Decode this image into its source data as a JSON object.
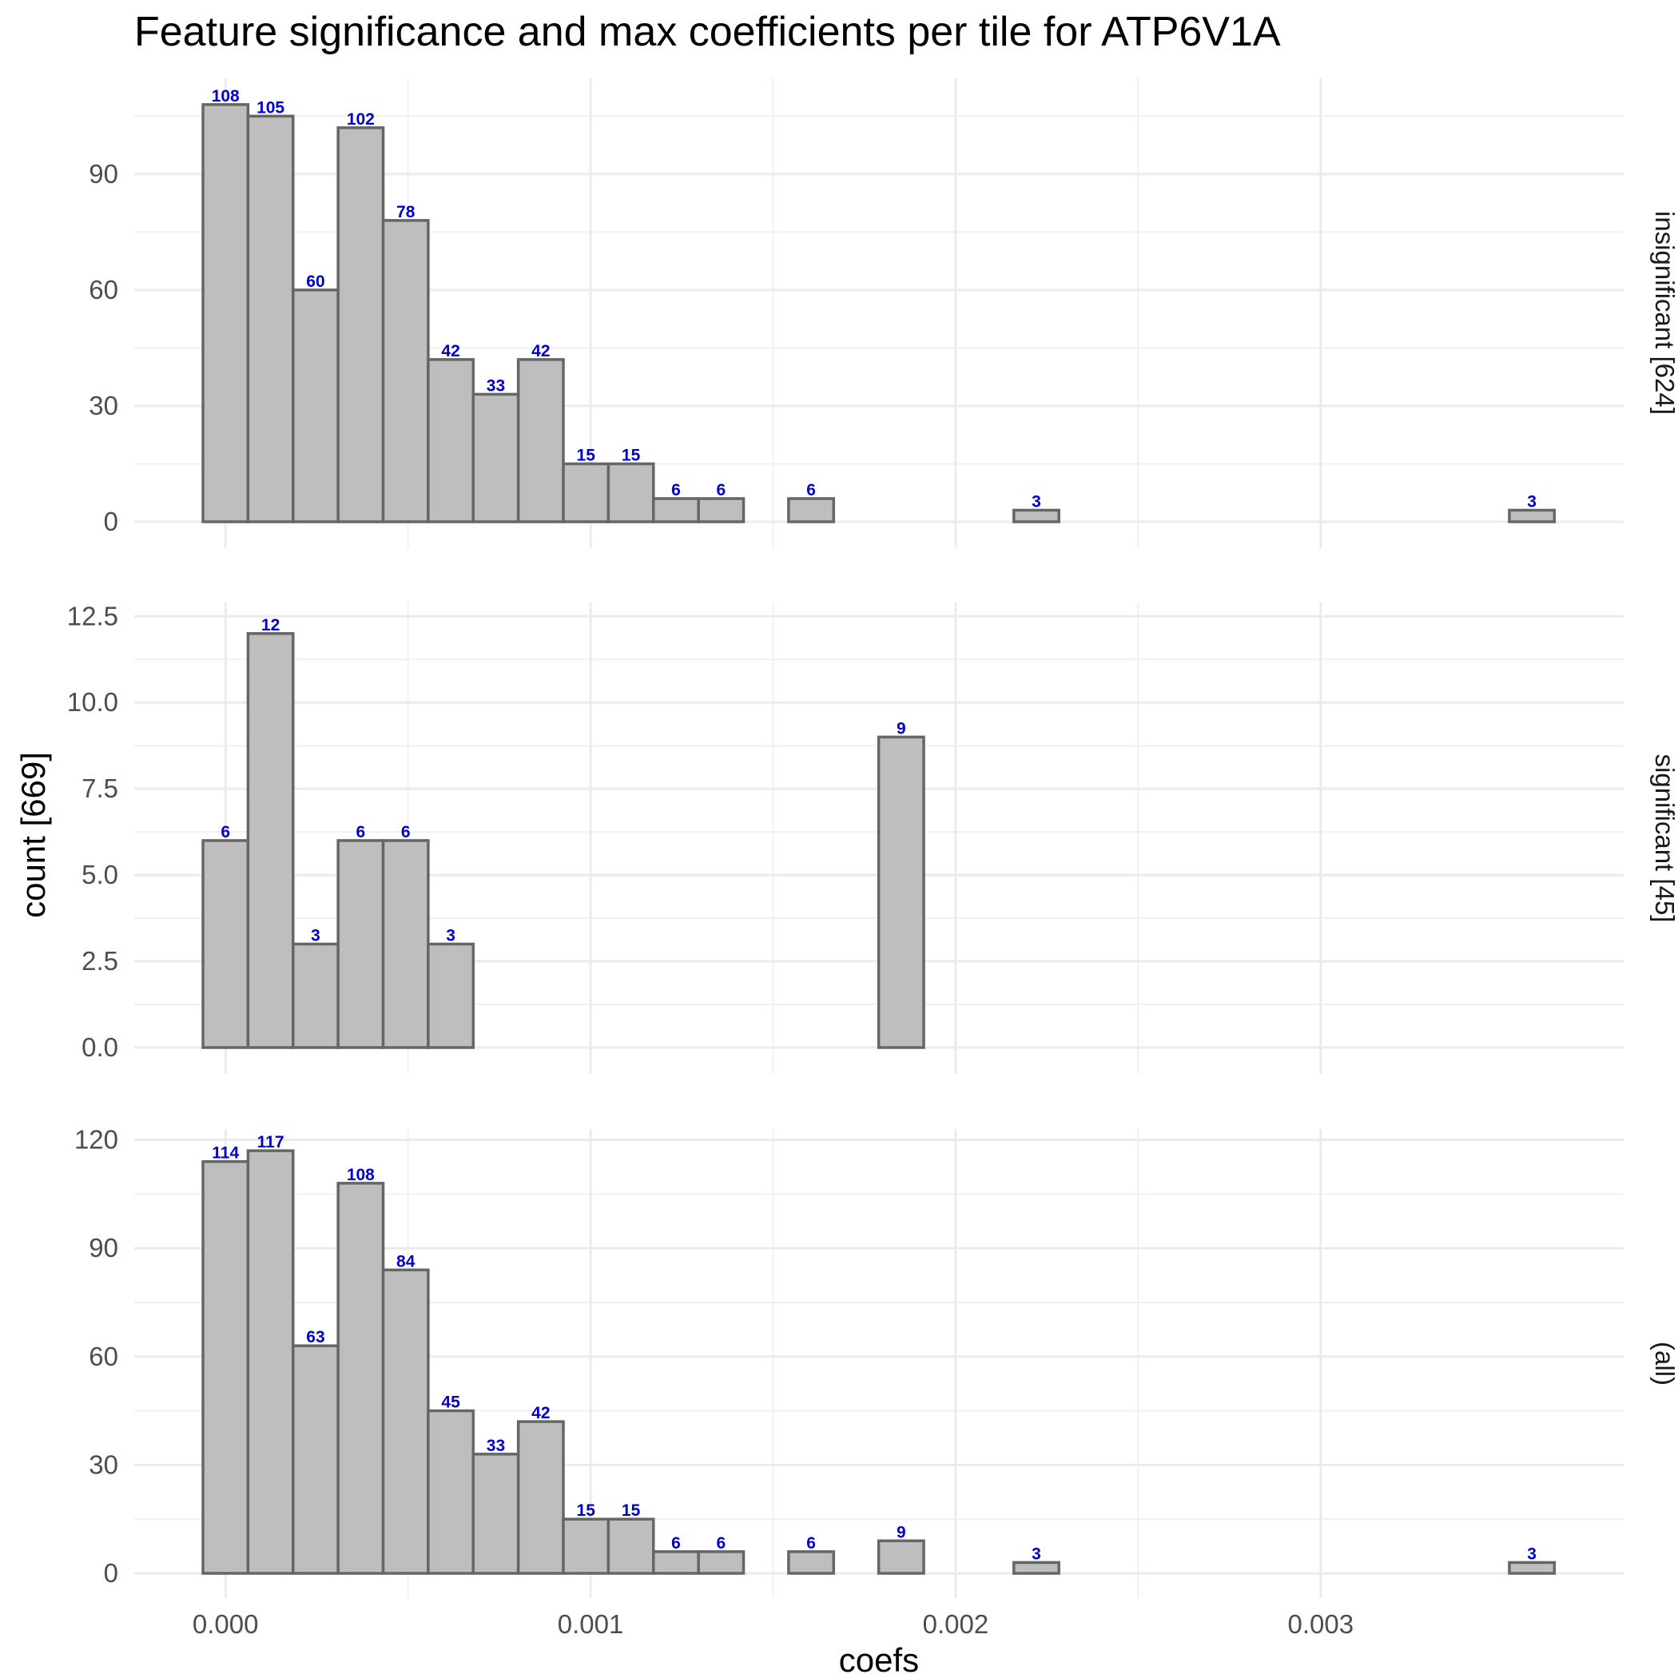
{
  "chart_data": {
    "type": "bar",
    "title": "Feature significance and max coefficients per tile for ATP6V1A",
    "xlabel": "coefs",
    "ylabel": "count [669]",
    "xlim": [
      -0.00025,
      0.00383
    ],
    "x_ticks": [
      0.0,
      0.001,
      0.002,
      0.003
    ],
    "x_tick_labels": [
      "0.000",
      "0.001",
      "0.002",
      "0.003"
    ],
    "bin_width": 0.0001234,
    "bin_start": -6.17e-05,
    "bin_count": 30,
    "grid": true,
    "bar_fill": "#bebebe",
    "bar_stroke": "#666666",
    "label_color": "#0000cd",
    "panels": [
      {
        "strip": "insignificant [624]",
        "ylim": [
          0,
          115
        ],
        "y_ticks": [
          0,
          30,
          60,
          90
        ],
        "y_tick_labels": [
          "0",
          "30",
          "60",
          "90"
        ],
        "values": [
          108,
          105,
          60,
          102,
          78,
          42,
          33,
          42,
          15,
          15,
          6,
          6,
          0,
          6,
          0,
          0,
          0,
          0,
          3,
          0,
          0,
          0,
          0,
          0,
          0,
          0,
          0,
          0,
          0,
          3
        ]
      },
      {
        "strip": "significant [45]",
        "ylim": [
          0,
          12.9
        ],
        "y_ticks": [
          0,
          2.5,
          5,
          7.5,
          10,
          12.5
        ],
        "y_tick_labels": [
          "0.0",
          "2.5",
          "5.0",
          "7.5",
          "10.0",
          "12.5"
        ],
        "values": [
          6,
          12,
          3,
          6,
          6,
          3,
          0,
          0,
          0,
          0,
          0,
          0,
          0,
          0,
          0,
          9,
          0,
          0,
          0,
          0,
          0,
          0,
          0,
          0,
          0,
          0,
          0,
          0,
          0,
          0
        ]
      },
      {
        "strip": "(all)",
        "ylim": [
          0,
          123
        ],
        "y_ticks": [
          0,
          30,
          60,
          90,
          120
        ],
        "y_tick_labels": [
          "0",
          "30",
          "60",
          "90",
          "120"
        ],
        "values": [
          114,
          117,
          63,
          108,
          84,
          45,
          33,
          42,
          15,
          15,
          6,
          6,
          0,
          6,
          0,
          9,
          0,
          0,
          3,
          0,
          0,
          0,
          0,
          0,
          0,
          0,
          0,
          0,
          0,
          3
        ]
      }
    ]
  }
}
